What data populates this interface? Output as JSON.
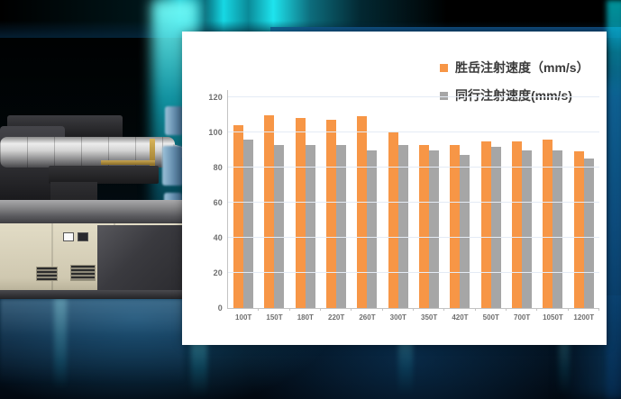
{
  "scene": {
    "left_image": "injection-molding-machine",
    "background_style": "teal-glow-on-black"
  },
  "colors": {
    "series1": "#F79646",
    "series2": "#A6A6A6",
    "panel": "#FFFFFF",
    "gridline": "#E4EBF5",
    "axis": "#C3C3C3",
    "tick_text": "#6F6F6F",
    "legend_text": "#3A3A3A",
    "glow_cyan": "#1EE4EE",
    "glow_blue": "#12588F"
  },
  "chart_data": {
    "type": "bar",
    "title": "",
    "xlabel": "",
    "ylabel": "",
    "categories": [
      "100T",
      "150T",
      "180T",
      "220T",
      "260T",
      "300T",
      "350T",
      "420T",
      "500T",
      "700T",
      "1050T",
      "1200T"
    ],
    "series": [
      {
        "name": "胜岳注射速度（mm/s）",
        "color": "#F79646",
        "values": [
          104,
          110,
          108,
          107,
          109,
          100,
          93,
          93,
          95,
          95,
          96,
          89
        ]
      },
      {
        "name": "同行注射速度(mm/s)",
        "color": "#A6A6A6",
        "values": [
          96,
          93,
          93,
          93,
          90,
          93,
          90,
          87,
          92,
          90,
          90,
          85
        ]
      }
    ],
    "ylim": [
      0,
      120
    ],
    "ytick_step": 20,
    "grid": true,
    "legend_position": "top-right"
  }
}
